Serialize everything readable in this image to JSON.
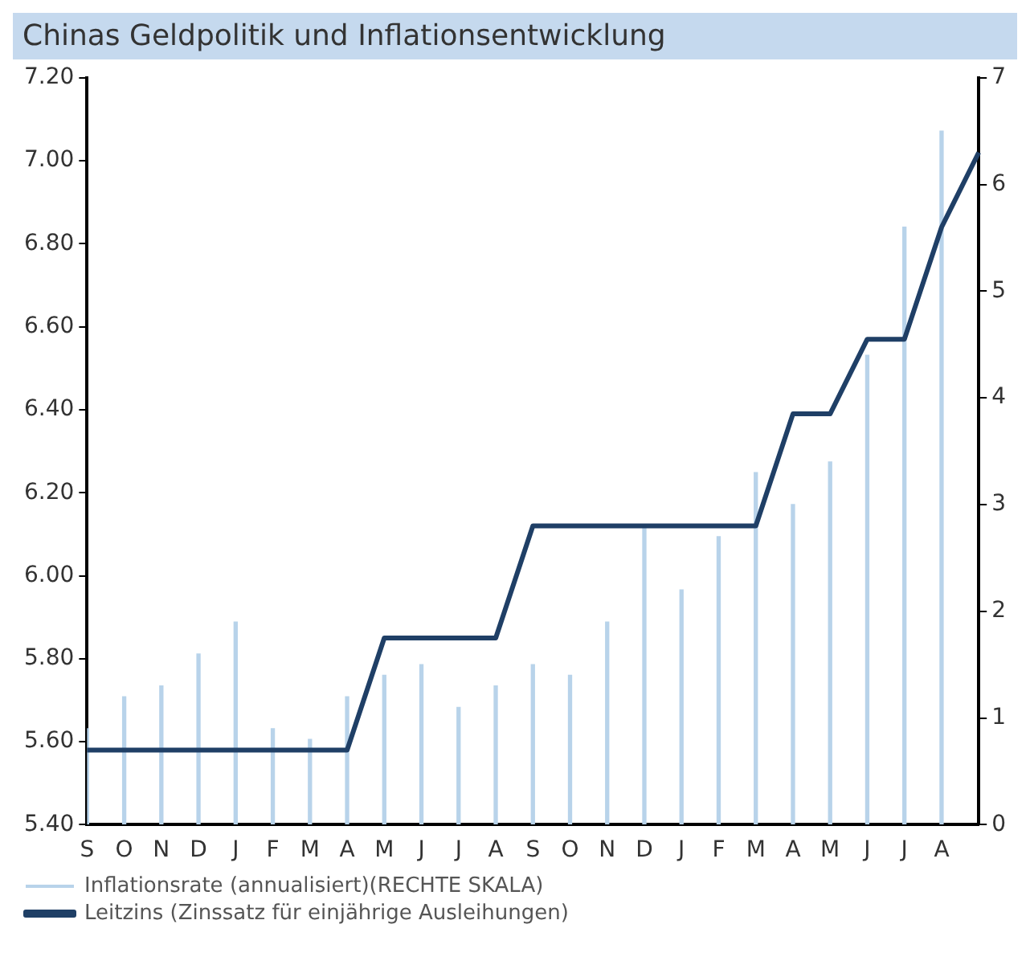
{
  "chart_data": {
    "type": "bar",
    "title": "Chinas Geldpolitik und Inflationsentwicklung",
    "categories": [
      "S",
      "O",
      "N",
      "D",
      "J",
      "F",
      "M",
      "A",
      "M",
      "J",
      "J",
      "A",
      "S",
      "O",
      "N",
      "D",
      "J",
      "F",
      "M",
      "A",
      "M",
      "J",
      "J",
      "A",
      null
    ],
    "series": [
      {
        "name": "Inflationsrate (annualisiert)(RECHTE SKALA)",
        "axis": "y2",
        "color": "#b8d3ea",
        "values": [
          0.9,
          1.2,
          1.3,
          1.6,
          1.9,
          0.9,
          0.8,
          1.2,
          1.4,
          1.5,
          1.1,
          1.3,
          1.5,
          1.4,
          1.9,
          2.8,
          2.2,
          2.7,
          3.3,
          3.0,
          3.4,
          4.4,
          5.6,
          6.5,
          null
        ]
      },
      {
        "name": "Leitzins (Zinssatz für einjährige Ausleihungen)",
        "type": "line",
        "color": "#1f3f66",
        "values": [
          5.58,
          5.58,
          5.58,
          5.58,
          5.58,
          5.58,
          5.58,
          5.58,
          5.85,
          5.85,
          5.85,
          5.85,
          6.12,
          6.12,
          6.12,
          6.12,
          6.12,
          6.12,
          6.12,
          6.39,
          6.39,
          6.57,
          6.57,
          6.84,
          7.02
        ]
      }
    ],
    "ylim": [
      5.4,
      7.2
    ],
    "yticks": [
      {
        "value": 5.4,
        "label": "5.40"
      },
      {
        "value": 5.6,
        "label": "5.60"
      },
      {
        "value": 5.8,
        "label": "5.80"
      },
      {
        "value": 6.0,
        "label": "6.00"
      },
      {
        "value": 6.2,
        "label": "6.20"
      },
      {
        "value": 6.4,
        "label": "6.40"
      },
      {
        "value": 6.6,
        "label": "6.60"
      },
      {
        "value": 6.8,
        "label": "6.80"
      },
      {
        "value": 7.0,
        "label": "7.00"
      },
      {
        "value": 7.2,
        "label": "7.20"
      }
    ],
    "y2lim": [
      0,
      7
    ],
    "y2ticks": [
      0,
      1,
      2,
      3,
      4,
      5,
      6,
      7
    ],
    "grid": false,
    "legend": "bottom left",
    "marker": "none",
    "line_style": "solid"
  }
}
